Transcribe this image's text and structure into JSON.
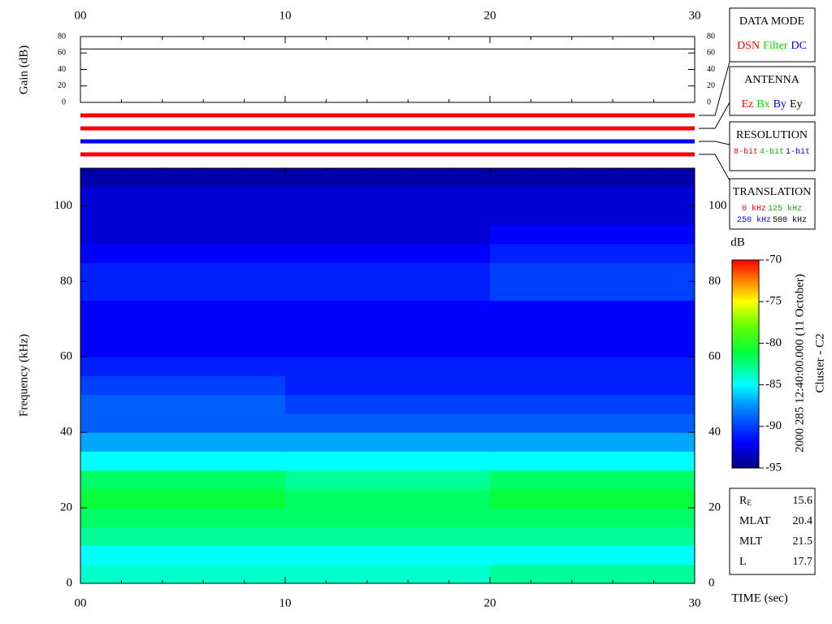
{
  "chart_data": [
    {
      "type": "line",
      "ylabel": "Gain (dB)",
      "xlim": [
        0,
        30
      ],
      "xticks": [
        {
          "value": 0,
          "label": "00"
        },
        10,
        20,
        30
      ],
      "ylim": [
        0,
        80
      ],
      "yticks": [
        0,
        20,
        40,
        60,
        80
      ],
      "x": [
        0,
        30
      ],
      "series": [
        {
          "values": [
            65,
            65
          ],
          "color": "#000000"
        }
      ]
    },
    {
      "type": "heatmap",
      "xlabel": "TIME (sec)",
      "ylabel": "Frequency (kHz)",
      "xlim": [
        0,
        30
      ],
      "xticks": [
        {
          "value": 0,
          "label": "00"
        },
        10,
        20,
        30
      ],
      "ylim": [
        0,
        110
      ],
      "yticks": [
        0,
        20,
        40,
        60,
        80,
        100
      ],
      "xbins": [
        0,
        10,
        20,
        30
      ],
      "ybins": [
        0,
        5,
        10,
        15,
        20,
        25,
        30,
        35,
        40,
        45,
        50,
        55,
        60,
        65,
        70,
        75,
        80,
        85,
        90,
        95,
        100,
        105,
        110
      ],
      "z": [
        [
          -84,
          -84,
          -83
        ],
        [
          -85,
          -85,
          -85
        ],
        [
          -83,
          -83,
          -83
        ],
        [
          -82,
          -82,
          -82
        ],
        [
          -81,
          -82,
          -81
        ],
        [
          -82,
          -83,
          -82
        ],
        [
          -85,
          -85,
          -85
        ],
        [
          -87,
          -87,
          -87
        ],
        [
          -89,
          -89,
          -89
        ],
        [
          -89,
          -90,
          -90
        ],
        [
          -90,
          -91,
          -91
        ],
        [
          -91,
          -91,
          -91
        ],
        [
          -92,
          -92,
          -92
        ],
        [
          -92,
          -92,
          -92
        ],
        [
          -92,
          -92,
          -92
        ],
        [
          -91,
          -91,
          -90
        ],
        [
          -91,
          -91,
          -90
        ],
        [
          -92,
          -92,
          -91
        ],
        [
          -93,
          -93,
          -92
        ],
        [
          -93,
          -93,
          -93
        ],
        [
          -93,
          -93,
          -93
        ],
        [
          -94,
          -94,
          -94
        ]
      ],
      "colorbar": {
        "label": "dB",
        "lim": [
          -95,
          -70
        ],
        "ticks": [
          -70,
          -75,
          -80,
          -85,
          -90,
          -95
        ]
      }
    }
  ],
  "status_bars": [
    {
      "color": "#ff0000"
    },
    {
      "color": "#ff0000"
    },
    {
      "color": "#0000ff"
    },
    {
      "color": "#ff0000"
    }
  ],
  "legend_boxes": [
    {
      "title": "DATA MODE",
      "items": [
        {
          "text": "DSN",
          "color": "#ff0000"
        },
        {
          "text": "Filter",
          "color": "#00dd00"
        },
        {
          "text": "DC",
          "color": "#0000ff"
        }
      ]
    },
    {
      "title": "ANTENNA",
      "items": [
        {
          "text": "Ez",
          "color": "#ff0000"
        },
        {
          "text": "Bx",
          "color": "#00dd00"
        },
        {
          "text": "By",
          "color": "#0000ff"
        },
        {
          "text": "Ey",
          "color": "#000000"
        }
      ]
    },
    {
      "title": "RESOLUTION",
      "items": [
        {
          "text": "8-bit",
          "color": "#ff0000"
        },
        {
          "text": "4-bit",
          "color": "#00bb00"
        },
        {
          "text": "1-bit",
          "color": "#0000ff"
        }
      ]
    },
    {
      "title": "TRANSLATION",
      "items": [
        {
          "text": "0 kHz",
          "color": "#ff0000"
        },
        {
          "text": "125 kHz",
          "color": "#00bb00"
        },
        {
          "text": "250 kHz",
          "color": "#0000ff"
        },
        {
          "text": "500 kHz",
          "color": "#000000"
        }
      ]
    }
  ],
  "timestamp": "2000 285 12:40:00.000 (11 October)",
  "spacecraft": "Cluster - C2",
  "ephemeris": [
    {
      "label": "R",
      "sub": "E",
      "value": 15.6
    },
    {
      "label": "MLAT",
      "value": 20.4
    },
    {
      "label": "MLT",
      "value": 21.5
    },
    {
      "label": "L",
      "value": 17.7
    }
  ]
}
